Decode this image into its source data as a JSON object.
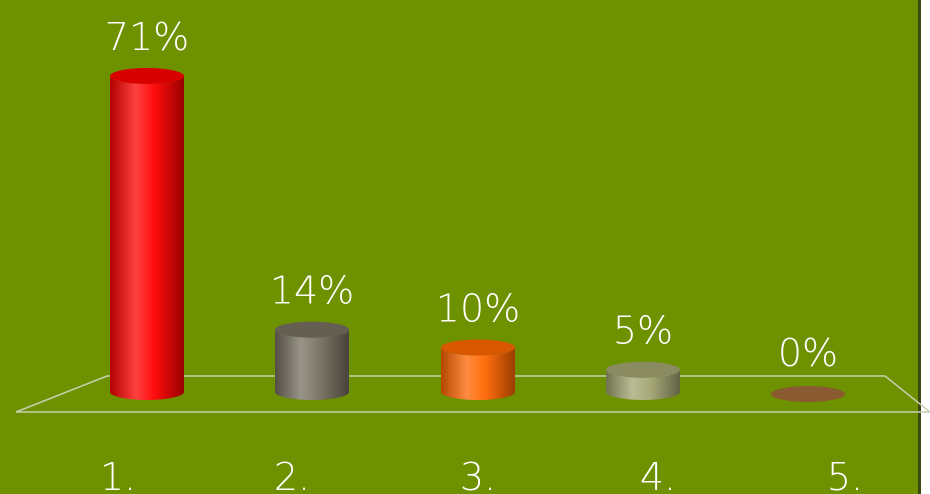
{
  "chart_data": {
    "type": "bar",
    "categories": [
      "1.",
      "2.",
      "3.",
      "4.",
      "5."
    ],
    "values": [
      71,
      14,
      10,
      5,
      0
    ],
    "value_labels": [
      "71%",
      "14%",
      "10%",
      "5%",
      "0%"
    ],
    "colors": [
      "#ff0000",
      "#767060",
      "#ff6600",
      "#a2a472",
      "#8a5a30"
    ]
  }
}
